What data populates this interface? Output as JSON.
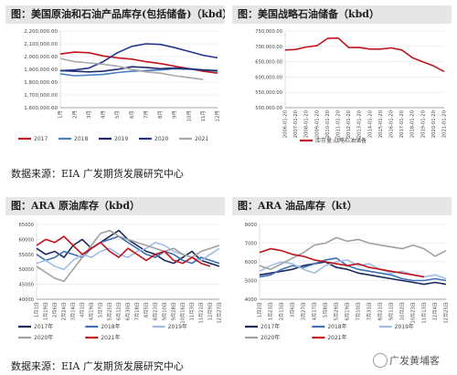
{
  "panels": {
    "p1": {
      "title": "图：美国原油和石油产品库存(包括储备)（kbd）"
    },
    "p2": {
      "title": "图：美国战略石油储备（kbd）"
    },
    "p3": {
      "title": "图：ARA 原油库存（kbd）"
    },
    "p4": {
      "title": "图：ARA 油品库存（kt）"
    }
  },
  "source_top": "数据来源：EIA 广发期货发展研究中心",
  "source_bottom": "数据来源：EIA 广发期货发展研究中心",
  "watermark": "广发黄埔客",
  "chart_data": [
    {
      "id": "p1",
      "type": "line",
      "title": "美国原油和石油产品库存(包括储备)（kbd）",
      "categories": [
        "1月",
        "2月",
        "3月",
        "4月",
        "5月",
        "6月",
        "7月",
        "8月",
        "9月",
        "10月",
        "11月",
        "12月"
      ],
      "ylim": [
        1600000,
        2200000
      ],
      "yticks": [
        "1,600,000.00",
        "1,700,000.00",
        "1,800,000.00",
        "1,900,000.00",
        "2,000,000.00",
        "2,100,000.00",
        "2,200,000.00"
      ],
      "ytick_values": [
        1600000,
        1700000,
        1800000,
        1900000,
        2000000,
        2100000,
        2200000
      ],
      "series": [
        {
          "name": "2017",
          "color": "#c0141c",
          "values": [
            2020000,
            2035000,
            2030000,
            2005000,
            1990000,
            1980000,
            1960000,
            1945000,
            1925000,
            1905000,
            1885000,
            1870000
          ]
        },
        {
          "name": "2018",
          "color": "#4a7dc4",
          "values": [
            1865000,
            1850000,
            1855000,
            1860000,
            1875000,
            1885000,
            1890000,
            1895000,
            1905000,
            1900000,
            1895000,
            1885000
          ]
        },
        {
          "name": "2019",
          "color": "#1a2a6c",
          "values": [
            1890000,
            1885000,
            1880000,
            1885000,
            1900000,
            1920000,
            1915000,
            1905000,
            1910000,
            1905000,
            1895000,
            1890000
          ]
        },
        {
          "name": "2020",
          "color": "#24358f",
          "values": [
            1890000,
            1895000,
            1910000,
            1960000,
            2030000,
            2080000,
            2100000,
            2095000,
            2070000,
            2040000,
            2010000,
            1990000
          ]
        },
        {
          "name": "2021",
          "color": "#a8a8a8",
          "values": [
            1985000,
            1960000,
            1950000,
            1940000,
            1925000,
            1900000,
            1880000,
            1870000,
            1850000,
            1835000,
            1820000,
            null
          ]
        }
      ]
    },
    {
      "id": "p2",
      "type": "line",
      "title": "美国战略石油储备（kbd）",
      "xlabels": [
        "2006-01-20",
        "2007-01-20",
        "2008-01-20",
        "2009-01-20",
        "2010-01-20",
        "2011-01-20",
        "2012-01-20",
        "2013-01-20",
        "2014-01-20",
        "2015-01-20",
        "2016-01-20",
        "2017-01-20",
        "2018-01-20",
        "2019-01-20",
        "2020-01-20",
        "2021-01-20"
      ],
      "ylim": [
        500000,
        750000
      ],
      "yticks": [
        "500,000.00",
        "550,000.00",
        "600,000.00",
        "650,000.00",
        "700,000.00",
        "750,000.00"
      ],
      "ytick_values": [
        500000,
        550000,
        600000,
        650000,
        700000,
        750000
      ],
      "series": [
        {
          "name": "库存量:战略石油储备",
          "color": "#c0141c",
          "values": [
            688000,
            690000,
            698000,
            702000,
            726000,
            727000,
            696000,
            696000,
            691000,
            691000,
            695000,
            688000,
            663000,
            649000,
            636000,
            618000
          ]
        }
      ]
    },
    {
      "id": "p3",
      "type": "line",
      "title": "ARA 原油库存（kbd）",
      "xlabels": [
        "1月1日",
        "1月19日",
        "2月6日",
        "2月24日",
        "3月14日",
        "4月1日",
        "4月19日",
        "5月7日",
        "5月25日",
        "6月12日",
        "6月30日",
        "7月18日",
        "8月5日",
        "8月23日",
        "9月10日",
        "9月28日",
        "10月16日",
        "11月3日",
        "11月21日",
        "12月9日",
        "12月27日"
      ],
      "ylim": [
        40000,
        65000
      ],
      "yticks": [
        "40000",
        "45000",
        "50000",
        "55000",
        "60000",
        "65000"
      ],
      "ytick_values": [
        40000,
        45000,
        50000,
        55000,
        60000,
        65000
      ],
      "series": [
        {
          "name": "2017年",
          "color": "#1a2a5a",
          "values": [
            57000,
            55000,
            56000,
            54000,
            58000,
            60000,
            57000,
            59000,
            61000,
            63000,
            60000,
            58000,
            56000,
            55000,
            53000,
            52000,
            54000,
            56000,
            53000,
            52000,
            51000
          ]
        },
        {
          "name": "2018年",
          "color": "#3f6fb5",
          "values": [
            55000,
            53000,
            54000,
            56000,
            55000,
            54000,
            57000,
            59000,
            60000,
            61000,
            59000,
            57000,
            55000,
            54000,
            56000,
            55000,
            53000,
            52000,
            54000,
            53000,
            52000
          ]
        },
        {
          "name": "2019年",
          "color": "#9fbde8",
          "values": [
            52000,
            53000,
            51000,
            50000,
            53000,
            55000,
            54000,
            56000,
            57000,
            55000,
            54000,
            56000,
            57000,
            59000,
            58000,
            56000,
            55000,
            54000,
            53000,
            55000,
            57000
          ]
        },
        {
          "name": "2020年",
          "color": "#a0a0a0",
          "values": [
            51000,
            49000,
            47000,
            46000,
            50000,
            54000,
            58000,
            62000,
            63000,
            61000,
            60000,
            59000,
            58000,
            57000,
            56000,
            57000,
            55000,
            54000,
            56000,
            57000,
            58000
          ]
        },
        {
          "name": "2021年",
          "color": "#c0141c",
          "values": [
            58000,
            60000,
            59000,
            61000,
            58000,
            55000,
            57000,
            59000,
            56000,
            54000,
            57000,
            55000,
            53000,
            55000,
            56000,
            53000,
            52000,
            54000,
            52000,
            51000,
            null
          ]
        }
      ]
    },
    {
      "id": "p4",
      "type": "line",
      "title": "ARA 油品库存（kt）",
      "xlabels": [
        "1月2日",
        "1月23日",
        "2月13日",
        "3月6日",
        "3月27日",
        "4月17日",
        "5月8日",
        "5月29日",
        "6月19日",
        "7月10日",
        "7月31日",
        "8月21日",
        "9月11日",
        "10月2日",
        "10月23日",
        "11月13日",
        "12月4日",
        "12月25日"
      ],
      "ylim": [
        4000,
        8000
      ],
      "yticks": [
        "4000",
        "5000",
        "6000",
        "7000",
        "8000"
      ],
      "ytick_values": [
        4000,
        5000,
        6000,
        7000,
        8000
      ],
      "series": [
        {
          "name": "2017年",
          "color": "#1a2a5a",
          "values": [
            5300,
            5400,
            5500,
            5600,
            5800,
            5900,
            6000,
            5700,
            5600,
            5400,
            5300,
            5200,
            5100,
            5000,
            4900,
            4800,
            4900,
            4800
          ]
        },
        {
          "name": "2018年",
          "color": "#3f6fb5",
          "values": [
            5200,
            5300,
            5600,
            5800,
            5700,
            5900,
            6100,
            6200,
            5800,
            5600,
            5500,
            5400,
            5300,
            5100,
            5000,
            5000,
            5100,
            5000
          ]
        },
        {
          "name": "2019年",
          "color": "#9fbde8",
          "values": [
            5500,
            5800,
            6000,
            5900,
            5600,
            5400,
            5800,
            6000,
            6100,
            5800,
            5900,
            5600,
            5400,
            5500,
            5300,
            5200,
            5300,
            5100
          ]
        },
        {
          "name": "2020年",
          "color": "#a0a0a0",
          "values": [
            5800,
            5600,
            5900,
            6200,
            6500,
            6900,
            7000,
            7300,
            7100,
            7200,
            7000,
            6900,
            6800,
            6700,
            6900,
            6700,
            6300,
            6600
          ]
        },
        {
          "name": "2021年",
          "color": "#c0141c",
          "values": [
            6500,
            6700,
            6600,
            6400,
            6300,
            6100,
            6000,
            5900,
            5800,
            5900,
            5700,
            5600,
            5500,
            5400,
            5300,
            5200,
            null,
            null
          ]
        }
      ]
    }
  ]
}
